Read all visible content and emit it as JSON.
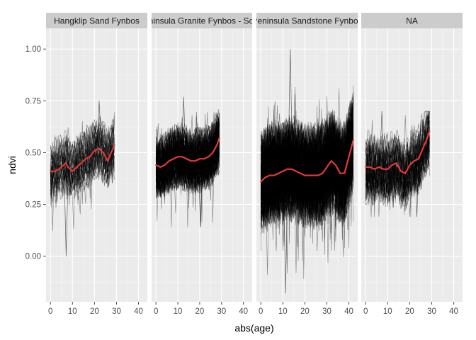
{
  "chart_data": {
    "type": "line",
    "layout": "faceted",
    "xlabel": "abs(age)",
    "ylabel": "ndvi",
    "xlim": [
      -2,
      44
    ],
    "ylim": [
      -0.22,
      1.1
    ],
    "x_ticks": [
      0,
      10,
      20,
      30,
      40
    ],
    "x_tick_labels": [
      "0",
      "10",
      "20",
      "30",
      "40"
    ],
    "y_ticks": [
      0.0,
      0.25,
      0.5,
      0.75,
      1.0
    ],
    "y_tick_labels": [
      "0.00",
      "0.25",
      "0.50",
      "0.75",
      "1.00"
    ],
    "grid": true,
    "legend": "none",
    "colors": {
      "panel_bg": "#ebebeb",
      "strip_bg": "#cccccc",
      "grid_major": "#ffffff",
      "grid_minor": "#f5f5f5",
      "raw_lines": "#000000",
      "smooth_line": "#e3383a"
    },
    "facets": [
      {
        "label": "Hangklip Sand Fynbos",
        "raw": {
          "x_max": 29,
          "n_lines": 40,
          "center": 0.46,
          "spread": 0.1,
          "low": 0.0,
          "high": 0.75
        },
        "smooth": {
          "x": [
            0,
            2,
            4,
            6,
            7,
            8,
            10,
            12,
            14,
            16,
            18,
            20,
            22,
            24,
            26,
            28,
            29
          ],
          "y": [
            0.41,
            0.41,
            0.42,
            0.44,
            0.45,
            0.43,
            0.41,
            0.43,
            0.45,
            0.47,
            0.48,
            0.51,
            0.52,
            0.5,
            0.46,
            0.51,
            0.535
          ]
        }
      },
      {
        "label": "Peninsula Granite Fynbos - South",
        "raw": {
          "x_max": 29,
          "n_lines": 120,
          "center": 0.47,
          "spread": 0.1,
          "low": 0.14,
          "high": 0.77
        },
        "smooth": {
          "x": [
            0,
            2,
            4,
            6,
            8,
            10,
            12,
            14,
            16,
            18,
            20,
            22,
            24,
            26,
            28,
            29
          ],
          "y": [
            0.44,
            0.43,
            0.44,
            0.46,
            0.47,
            0.48,
            0.48,
            0.47,
            0.46,
            0.46,
            0.47,
            0.47,
            0.48,
            0.5,
            0.54,
            0.57
          ]
        }
      },
      {
        "label": "Peninsula Sandstone Fynbos",
        "raw": {
          "x_max": 42,
          "n_lines": 170,
          "center": 0.4,
          "spread": 0.16,
          "low": -0.18,
          "high": 1.0
        },
        "smooth": {
          "x": [
            0,
            2,
            4,
            6,
            8,
            10,
            12,
            14,
            16,
            18,
            20,
            22,
            24,
            26,
            28,
            30,
            32,
            34,
            36,
            38,
            40,
            42
          ],
          "y": [
            0.36,
            0.38,
            0.39,
            0.39,
            0.4,
            0.41,
            0.42,
            0.42,
            0.41,
            0.4,
            0.39,
            0.39,
            0.39,
            0.39,
            0.4,
            0.43,
            0.46,
            0.44,
            0.4,
            0.4,
            0.48,
            0.56
          ]
        }
      },
      {
        "label": "NA",
        "raw": {
          "x_max": 29,
          "n_lines": 60,
          "center": 0.44,
          "spread": 0.11,
          "low": 0.19,
          "high": 0.7
        },
        "smooth": {
          "x": [
            0,
            2,
            4,
            6,
            8,
            10,
            12,
            14,
            16,
            18,
            20,
            22,
            24,
            26,
            28,
            29
          ],
          "y": [
            0.43,
            0.43,
            0.42,
            0.43,
            0.42,
            0.42,
            0.44,
            0.45,
            0.41,
            0.4,
            0.44,
            0.46,
            0.47,
            0.52,
            0.57,
            0.605
          ]
        }
      }
    ]
  }
}
